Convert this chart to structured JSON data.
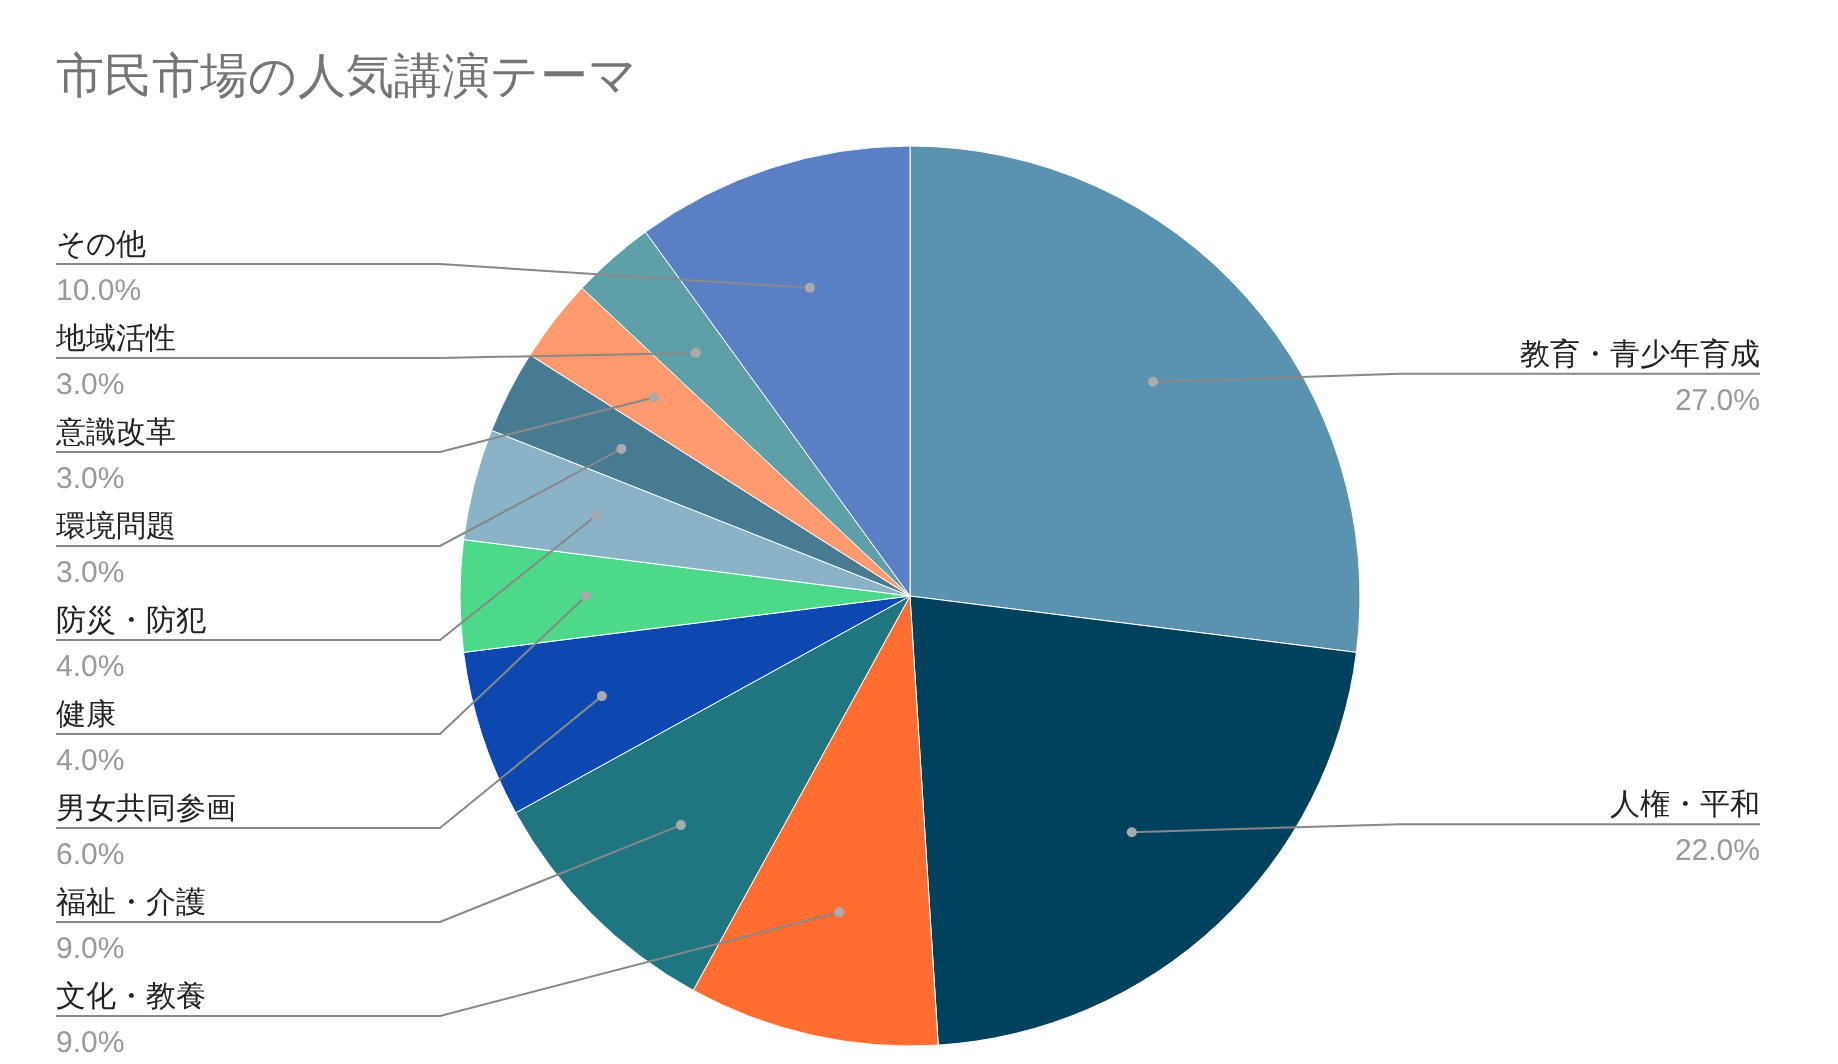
{
  "chart_data": {
    "type": "pie",
    "title": "市民市場の人気講演テーマ",
    "categories": [
      "教育・青少年育成",
      "人権・平和",
      "文化・教養",
      "福祉・介護",
      "男女共同参画",
      "健康",
      "防災・防犯",
      "環境問題",
      "意識改革",
      "地域活性",
      "その他"
    ],
    "values": [
      27,
      22,
      9,
      9,
      6,
      4,
      4,
      3,
      3,
      3,
      10
    ],
    "value_labels": [
      "27.0%",
      "22.0%",
      "9.0%",
      "9.0%",
      "6.0%",
      "4.0%",
      "4.0%",
      "3.0%",
      "3.0%",
      "3.0%",
      "10.0%"
    ],
    "colors": [
      "#5a93b0",
      "#00425e",
      "#ff6d31",
      "#1f7580",
      "#0d47b0",
      "#4cd98a",
      "#8ab3c8",
      "#467b92",
      "#ff9a6e",
      "#5fa0a8",
      "#5b7fc4"
    ]
  }
}
